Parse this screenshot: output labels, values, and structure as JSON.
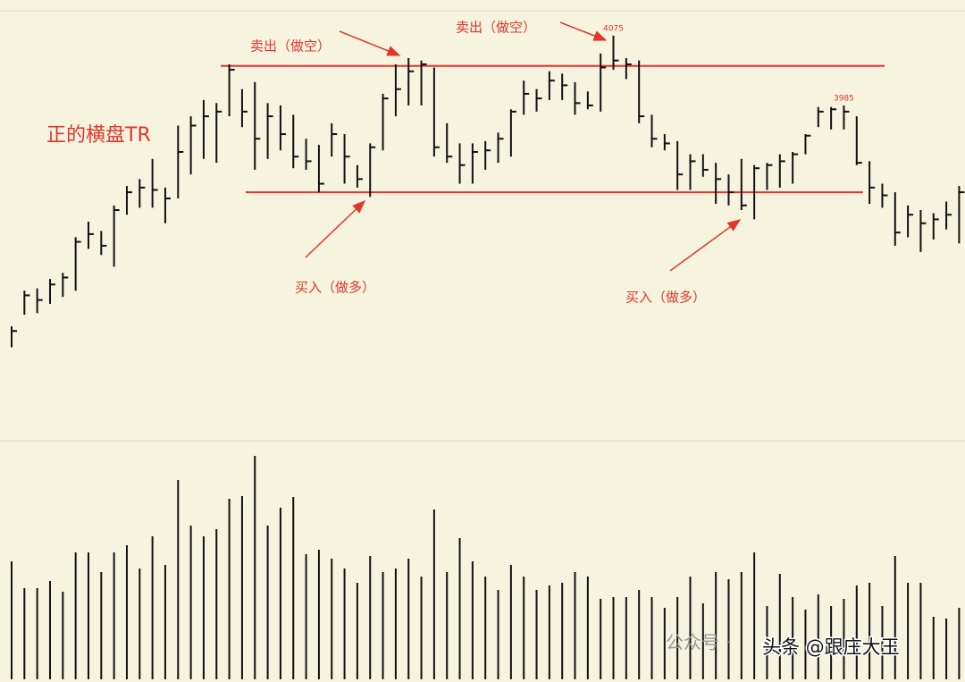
{
  "chart_data": {
    "type": "ohlc",
    "title": "正的横盘TR",
    "annotations": [
      "卖出（做空）",
      "卖出（做空）",
      "买入（做多）",
      "买入（做多）"
    ],
    "high": [
      3700,
      3746,
      3749,
      3761,
      3769,
      3815,
      3835,
      3823,
      3856,
      3881,
      3890,
      3916,
      3879,
      3959,
      3971,
      3992,
      3988,
      4038,
      4006,
      4015,
      3988,
      3985,
      3973,
      3942,
      3934,
      3962,
      3948,
      3908,
      3936,
      4000,
      4038,
      4046,
      4043,
      4034,
      3962,
      3936,
      3936,
      3939,
      3950,
      3980,
      4017,
      4006,
      4029,
      4026,
      4015,
      4003,
      4052,
      4075,
      4046,
      4043,
      3973,
      3948,
      3939,
      3922,
      3922,
      3911,
      3896,
      3916,
      3908,
      3911,
      3922,
      3925,
      3948,
      3983,
      3983,
      3985,
      3971,
      3913,
      3884,
      3873,
      3856,
      3850,
      3846,
      3861,
      3881
    ],
    "low": [
      3673,
      3715,
      3717,
      3729,
      3738,
      3746,
      3800,
      3792,
      3777,
      3844,
      3853,
      3853,
      3833,
      3865,
      3896,
      3916,
      3911,
      3971,
      3957,
      3902,
      3916,
      3927,
      3904,
      3902,
      3873,
      3919,
      3884,
      3879,
      3867,
      3927,
      3971,
      3985,
      3985,
      3919,
      3911,
      3884,
      3884,
      3902,
      3911,
      3919,
      3973,
      3977,
      3992,
      3992,
      3973,
      3980,
      3977,
      4031,
      4019,
      3962,
      3931,
      3927,
      3876,
      3876,
      3893,
      3858,
      3856,
      3850,
      3838,
      3876,
      3879,
      3884,
      3922,
      3957,
      3954,
      3954,
      3908,
      3858,
      3853,
      3804,
      3815,
      3796,
      3812,
      3825,
      3807
    ],
    "close": [
      3694,
      3740,
      3734,
      3754,
      3763,
      3809,
      3819,
      3804,
      3850,
      3873,
      3879,
      3876,
      3865,
      3925,
      3959,
      3971,
      3977,
      4031,
      3977,
      3942,
      3971,
      3948,
      3919,
      3913,
      3884,
      3948,
      3919,
      3890,
      3931,
      3994,
      4006,
      4029,
      4038,
      3931,
      3919,
      3908,
      3925,
      3927,
      3942,
      3977,
      4000,
      3994,
      4017,
      4011,
      3988,
      3985,
      4034,
      4043,
      4038,
      3971,
      3942,
      3936,
      3896,
      3913,
      3902,
      3890,
      3873,
      3856,
      3904,
      3908,
      3913,
      3922,
      3946,
      3977,
      3980,
      3977,
      3911,
      3879,
      3869,
      3821,
      3844,
      3833,
      3838,
      3844,
      3873
    ],
    "high_value_labels": [
      null,
      null,
      null,
      null,
      null,
      null,
      null,
      null,
      null,
      null,
      null,
      null,
      null,
      null,
      null,
      null,
      null,
      null,
      null,
      null,
      null,
      null,
      null,
      null,
      null,
      null,
      null,
      null,
      null,
      null,
      null,
      null,
      null,
      null,
      null,
      null,
      null,
      null,
      null,
      null,
      null,
      null,
      null,
      null,
      null,
      null,
      null,
      "4075",
      null,
      null,
      null,
      null,
      null,
      null,
      null,
      null,
      null,
      null,
      null,
      null,
      null,
      null,
      null,
      null,
      null,
      "3985",
      null,
      null,
      null,
      null,
      null,
      null,
      null,
      null,
      null
    ],
    "volume": [
      132,
      102,
      102,
      110,
      98,
      142,
      142,
      120,
      142,
      150,
      124,
      160,
      128,
      223,
      172,
      160,
      168,
      202,
      205,
      250,
      172,
      192,
      204,
      140,
      145,
      135,
      124,
      108,
      138,
      120,
      124,
      135,
      115,
      190,
      120,
      158,
      132,
      115,
      100,
      128,
      115,
      100,
      105,
      108,
      120,
      115,
      90,
      92,
      92,
      100,
      92,
      80,
      92,
      115,
      85,
      120,
      112,
      120,
      142,
      82,
      118,
      92,
      78,
      95,
      82,
      90,
      105,
      108,
      82,
      138,
      108,
      108,
      70,
      68,
      80
    ],
    "ylim": [
      3556,
      4121
    ],
    "volume_ylim": [
      0,
      267
    ],
    "levels": [
      4036,
      3873
    ],
    "color": "#111111",
    "level_color": "#e8322b"
  },
  "watermark": [
    "公众号 ·",
    "头条 @跟庄大王"
  ]
}
